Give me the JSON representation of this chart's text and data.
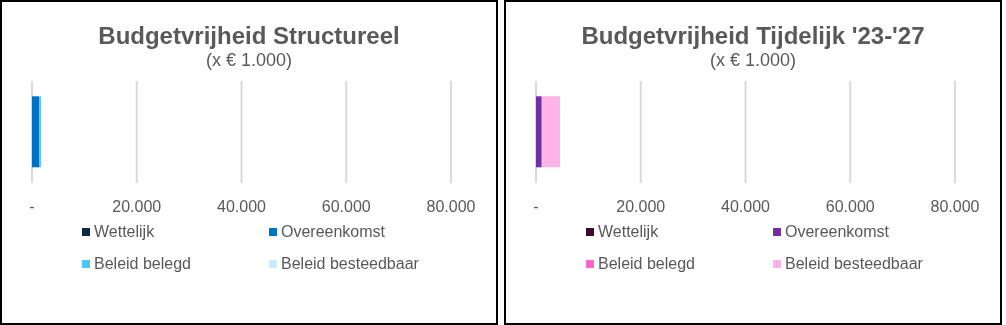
{
  "chart_data": [
    {
      "type": "bar",
      "orientation": "horizontal",
      "stacked": true,
      "title": "Budgetvrijheid Structureel",
      "subtitle": "(x € 1.000)",
      "categories": [
        null
      ],
      "series": [
        {
          "name": "Wettelijk",
          "color": "#0e2841",
          "values": [
            0
          ]
        },
        {
          "name": "Overeenkomst",
          "color": "#0070c0",
          "values": [
            1400
          ]
        },
        {
          "name": "Beleid belegd",
          "color": "#4fc3f7",
          "values": [
            300
          ]
        },
        {
          "name": "Beleid besteedbaar",
          "color": "#c9e9fb",
          "values": [
            0
          ]
        }
      ],
      "xlim": [
        0,
        80000
      ],
      "xticks": [
        {
          "value": 0,
          "label": "-"
        },
        {
          "value": 20000,
          "label": "20.000"
        },
        {
          "value": 40000,
          "label": "40.000"
        },
        {
          "value": 60000,
          "label": "60.000"
        },
        {
          "value": 80000,
          "label": "80.000"
        }
      ],
      "grid": "x",
      "legend": "bottom"
    },
    {
      "type": "bar",
      "orientation": "horizontal",
      "stacked": true,
      "title": "Budgetvrijheid Tijdelijk '23-'27",
      "subtitle": "(x € 1.000)",
      "categories": [
        null
      ],
      "series": [
        {
          "name": "Wettelijk",
          "color": "#3d0a2e",
          "values": [
            0
          ]
        },
        {
          "name": "Overeenkomst",
          "color": "#7030a0",
          "values": [
            1100
          ]
        },
        {
          "name": "Beleid belegd",
          "color": "#ff66cc",
          "values": [
            0
          ]
        },
        {
          "name": "Beleid besteedbaar",
          "color": "#ffb3e6",
          "values": [
            3500
          ]
        }
      ],
      "xlim": [
        0,
        80000
      ],
      "xticks": [
        {
          "value": 0,
          "label": "-"
        },
        {
          "value": 20000,
          "label": "20.000"
        },
        {
          "value": 40000,
          "label": "40.000"
        },
        {
          "value": 60000,
          "label": "60.000"
        },
        {
          "value": 80000,
          "label": "80.000"
        }
      ],
      "grid": "x",
      "legend": "bottom"
    }
  ]
}
